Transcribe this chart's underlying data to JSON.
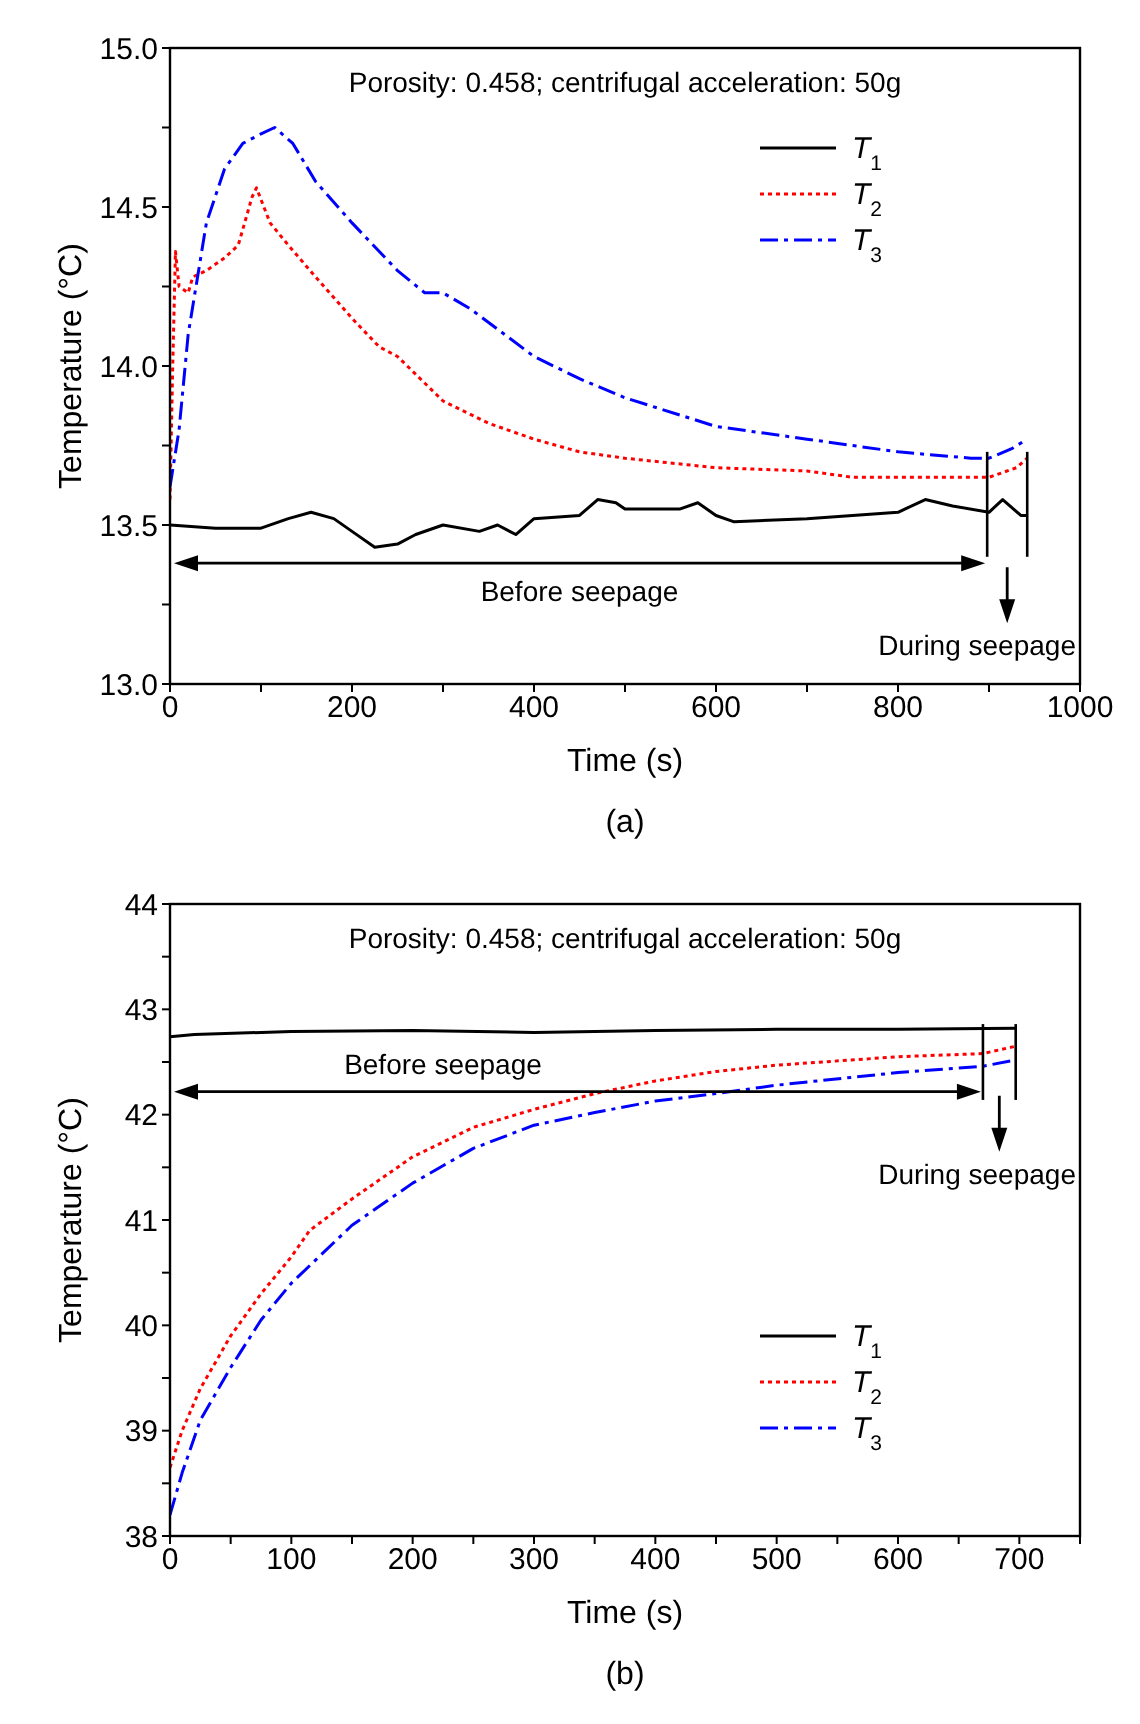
{
  "chart_data": [
    {
      "type": "line",
      "title": "(a)",
      "xlabel": "Time (s)",
      "ylabel": "Temperature (°C)",
      "xlim": [
        0,
        1000
      ],
      "ylim": [
        13.0,
        15.0
      ],
      "xticks": [
        0,
        {
          "value": 100,
          "label": null
        },
        200,
        {
          "value": 300,
          "label": null
        },
        400,
        {
          "value": 500,
          "label": null
        },
        600,
        {
          "value": 700,
          "label": null
        },
        800,
        {
          "value": 900,
          "label": null
        },
        1000
      ],
      "yticks": [
        {
          "value": 13,
          "label": "13.0"
        },
        {
          "value": 13.25,
          "label": null
        },
        13.5,
        {
          "value": 13.75,
          "label": null
        },
        {
          "value": 14,
          "label": "14.0"
        },
        {
          "value": 14.25,
          "label": null
        },
        14.5,
        {
          "value": 14.75,
          "label": null
        },
        {
          "value": 15,
          "label": "15.0"
        }
      ],
      "legend": "top right",
      "grid": false,
      "series": [
        {
          "name": "T$_{1}$",
          "color": "#000000",
          "line_style": "solid",
          "x": [
            0,
            50,
            100,
            130,
            155,
            180,
            200,
            225,
            250,
            270,
            300,
            340,
            360,
            380,
            400,
            450,
            470,
            490,
            500,
            560,
            580,
            600,
            620,
            700,
            800,
            830,
            860,
            900,
            915,
            935,
            942
          ],
          "values": [
            13.5,
            13.49,
            13.49,
            13.52,
            13.54,
            13.52,
            13.48,
            13.43,
            13.44,
            13.47,
            13.5,
            13.48,
            13.5,
            13.47,
            13.52,
            13.53,
            13.58,
            13.57,
            13.55,
            13.55,
            13.57,
            13.53,
            13.51,
            13.52,
            13.54,
            13.58,
            13.56,
            13.54,
            13.58,
            13.53,
            13.53
          ]
        },
        {
          "name": "T$_{2}$",
          "color": "#ff0000",
          "line_style": "dotted",
          "x": [
            0,
            3,
            6,
            10,
            20,
            25,
            40,
            60,
            75,
            90,
            95,
            110,
            130,
            160,
            200,
            230,
            250,
            300,
            350,
            400,
            450,
            500,
            600,
            700,
            750,
            900,
            930,
            942
          ],
          "values": [
            13.58,
            14.0,
            14.36,
            14.25,
            14.23,
            14.28,
            14.3,
            14.34,
            14.38,
            14.53,
            14.56,
            14.45,
            14.38,
            14.28,
            14.15,
            14.06,
            14.03,
            13.89,
            13.82,
            13.77,
            13.73,
            13.71,
            13.68,
            13.67,
            13.65,
            13.65,
            13.68,
            13.71
          ]
        },
        {
          "name": "T$_{3}$",
          "color": "#0000ff",
          "line_style": "dashed",
          "x": [
            0,
            10,
            20,
            40,
            60,
            80,
            100,
            115,
            135,
            160,
            200,
            250,
            280,
            300,
            330,
            400,
            450,
            500,
            600,
            700,
            800,
            880,
            900,
            925,
            942
          ],
          "values": [
            13.62,
            13.8,
            14.1,
            14.45,
            14.62,
            14.7,
            14.73,
            14.75,
            14.7,
            14.58,
            14.45,
            14.3,
            14.23,
            14.23,
            14.18,
            14.03,
            13.96,
            13.9,
            13.81,
            13.77,
            13.73,
            13.71,
            13.71,
            13.74,
            13.77
          ]
        }
      ],
      "ref_lines": [
        {
          "axis": "x",
          "value": 898
        },
        {
          "axis": "x",
          "value": 942
        }
      ],
      "annotations": [
        "Porosity: 0.458; centrifugal acceleration: 50g",
        "Before seepage",
        "During seepage"
      ]
    },
    {
      "type": "line",
      "title": "(b)",
      "xlabel": "Time (s)",
      "ylabel": "Temperature (°C)",
      "xlim": [
        0,
        750
      ],
      "ylim": [
        38,
        44
      ],
      "xticks": [
        0,
        {
          "value": 50,
          "label": null
        },
        100,
        {
          "value": 150,
          "label": null
        },
        200,
        {
          "value": 250,
          "label": null
        },
        300,
        {
          "value": 350,
          "label": null
        },
        400,
        {
          "value": 450,
          "label": null
        },
        500,
        {
          "value": 550,
          "label": null
        },
        600,
        {
          "value": 650,
          "label": null
        },
        700,
        {
          "value": 750,
          "label": null
        }
      ],
      "yticks": [
        38,
        {
          "value": 38.5,
          "label": null
        },
        39,
        {
          "value": 39.5,
          "label": null
        },
        40,
        {
          "value": 40.5,
          "label": null
        },
        41,
        {
          "value": 41.5,
          "label": null
        },
        42,
        {
          "value": 42.5,
          "label": null
        },
        43,
        {
          "value": 43.5,
          "label": null
        },
        44
      ],
      "legend": "bottom right",
      "grid": false,
      "series": [
        {
          "name": "T$_{1}$",
          "color": "#000000",
          "line_style": "solid",
          "x": [
            0,
            20,
            100,
            200,
            300,
            400,
            500,
            600,
            697
          ],
          "values": [
            42.74,
            42.76,
            42.79,
            42.8,
            42.78,
            42.8,
            42.81,
            42.81,
            42.82
          ]
        },
        {
          "name": "T$_{2}$",
          "color": "#ff0000",
          "line_style": "dotted",
          "x": [
            0,
            10,
            25,
            50,
            75,
            100,
            115,
            150,
            200,
            250,
            300,
            350,
            400,
            450,
            500,
            600,
            670,
            697
          ],
          "values": [
            38.65,
            39.0,
            39.4,
            39.9,
            40.3,
            40.65,
            40.9,
            41.2,
            41.6,
            41.88,
            42.05,
            42.2,
            42.32,
            42.41,
            42.47,
            42.55,
            42.58,
            42.65
          ]
        },
        {
          "name": "T$_{3}$",
          "color": "#0000ff",
          "line_style": "dashed",
          "x": [
            0,
            10,
            25,
            50,
            75,
            100,
            150,
            200,
            250,
            300,
            350,
            400,
            450,
            500,
            600,
            670,
            697
          ],
          "values": [
            38.2,
            38.6,
            39.1,
            39.6,
            40.05,
            40.4,
            40.95,
            41.35,
            41.68,
            41.9,
            42.02,
            42.13,
            42.2,
            42.28,
            42.4,
            42.46,
            42.52
          ]
        }
      ],
      "ref_lines": [
        {
          "axis": "x",
          "value": 670
        },
        {
          "axis": "x",
          "value": 697
        }
      ],
      "annotations": [
        "Porosity: 0.458; centrifugal acceleration: 50g",
        "Before seepage",
        "During seepage"
      ]
    }
  ]
}
